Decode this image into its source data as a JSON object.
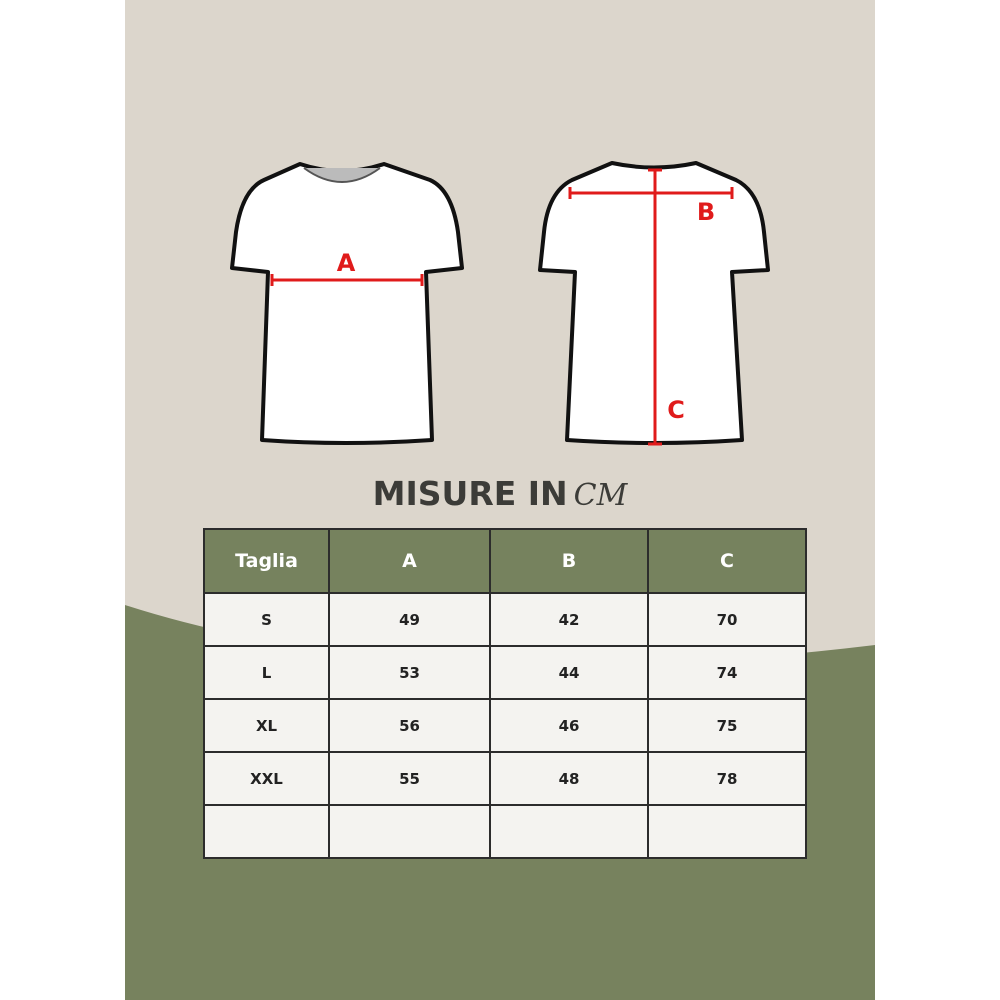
{
  "colors": {
    "background": "#dcd6cc",
    "green": "#77825e",
    "measure_line": "#e01b1b"
  },
  "diagram": {
    "front_label": "A",
    "back_label_width": "B",
    "back_label_length": "C"
  },
  "title": {
    "main": "MISURE IN",
    "unit": "CM"
  },
  "table": {
    "headers": [
      "Taglia",
      "A",
      "B",
      "C"
    ],
    "rows": [
      [
        "S",
        "49",
        "42",
        "70"
      ],
      [
        "L",
        "53",
        "44",
        "74"
      ],
      [
        "XL",
        "56",
        "46",
        "75"
      ],
      [
        "XXL",
        "55",
        "48",
        "78"
      ],
      [
        "",
        "",
        "",
        ""
      ]
    ]
  }
}
